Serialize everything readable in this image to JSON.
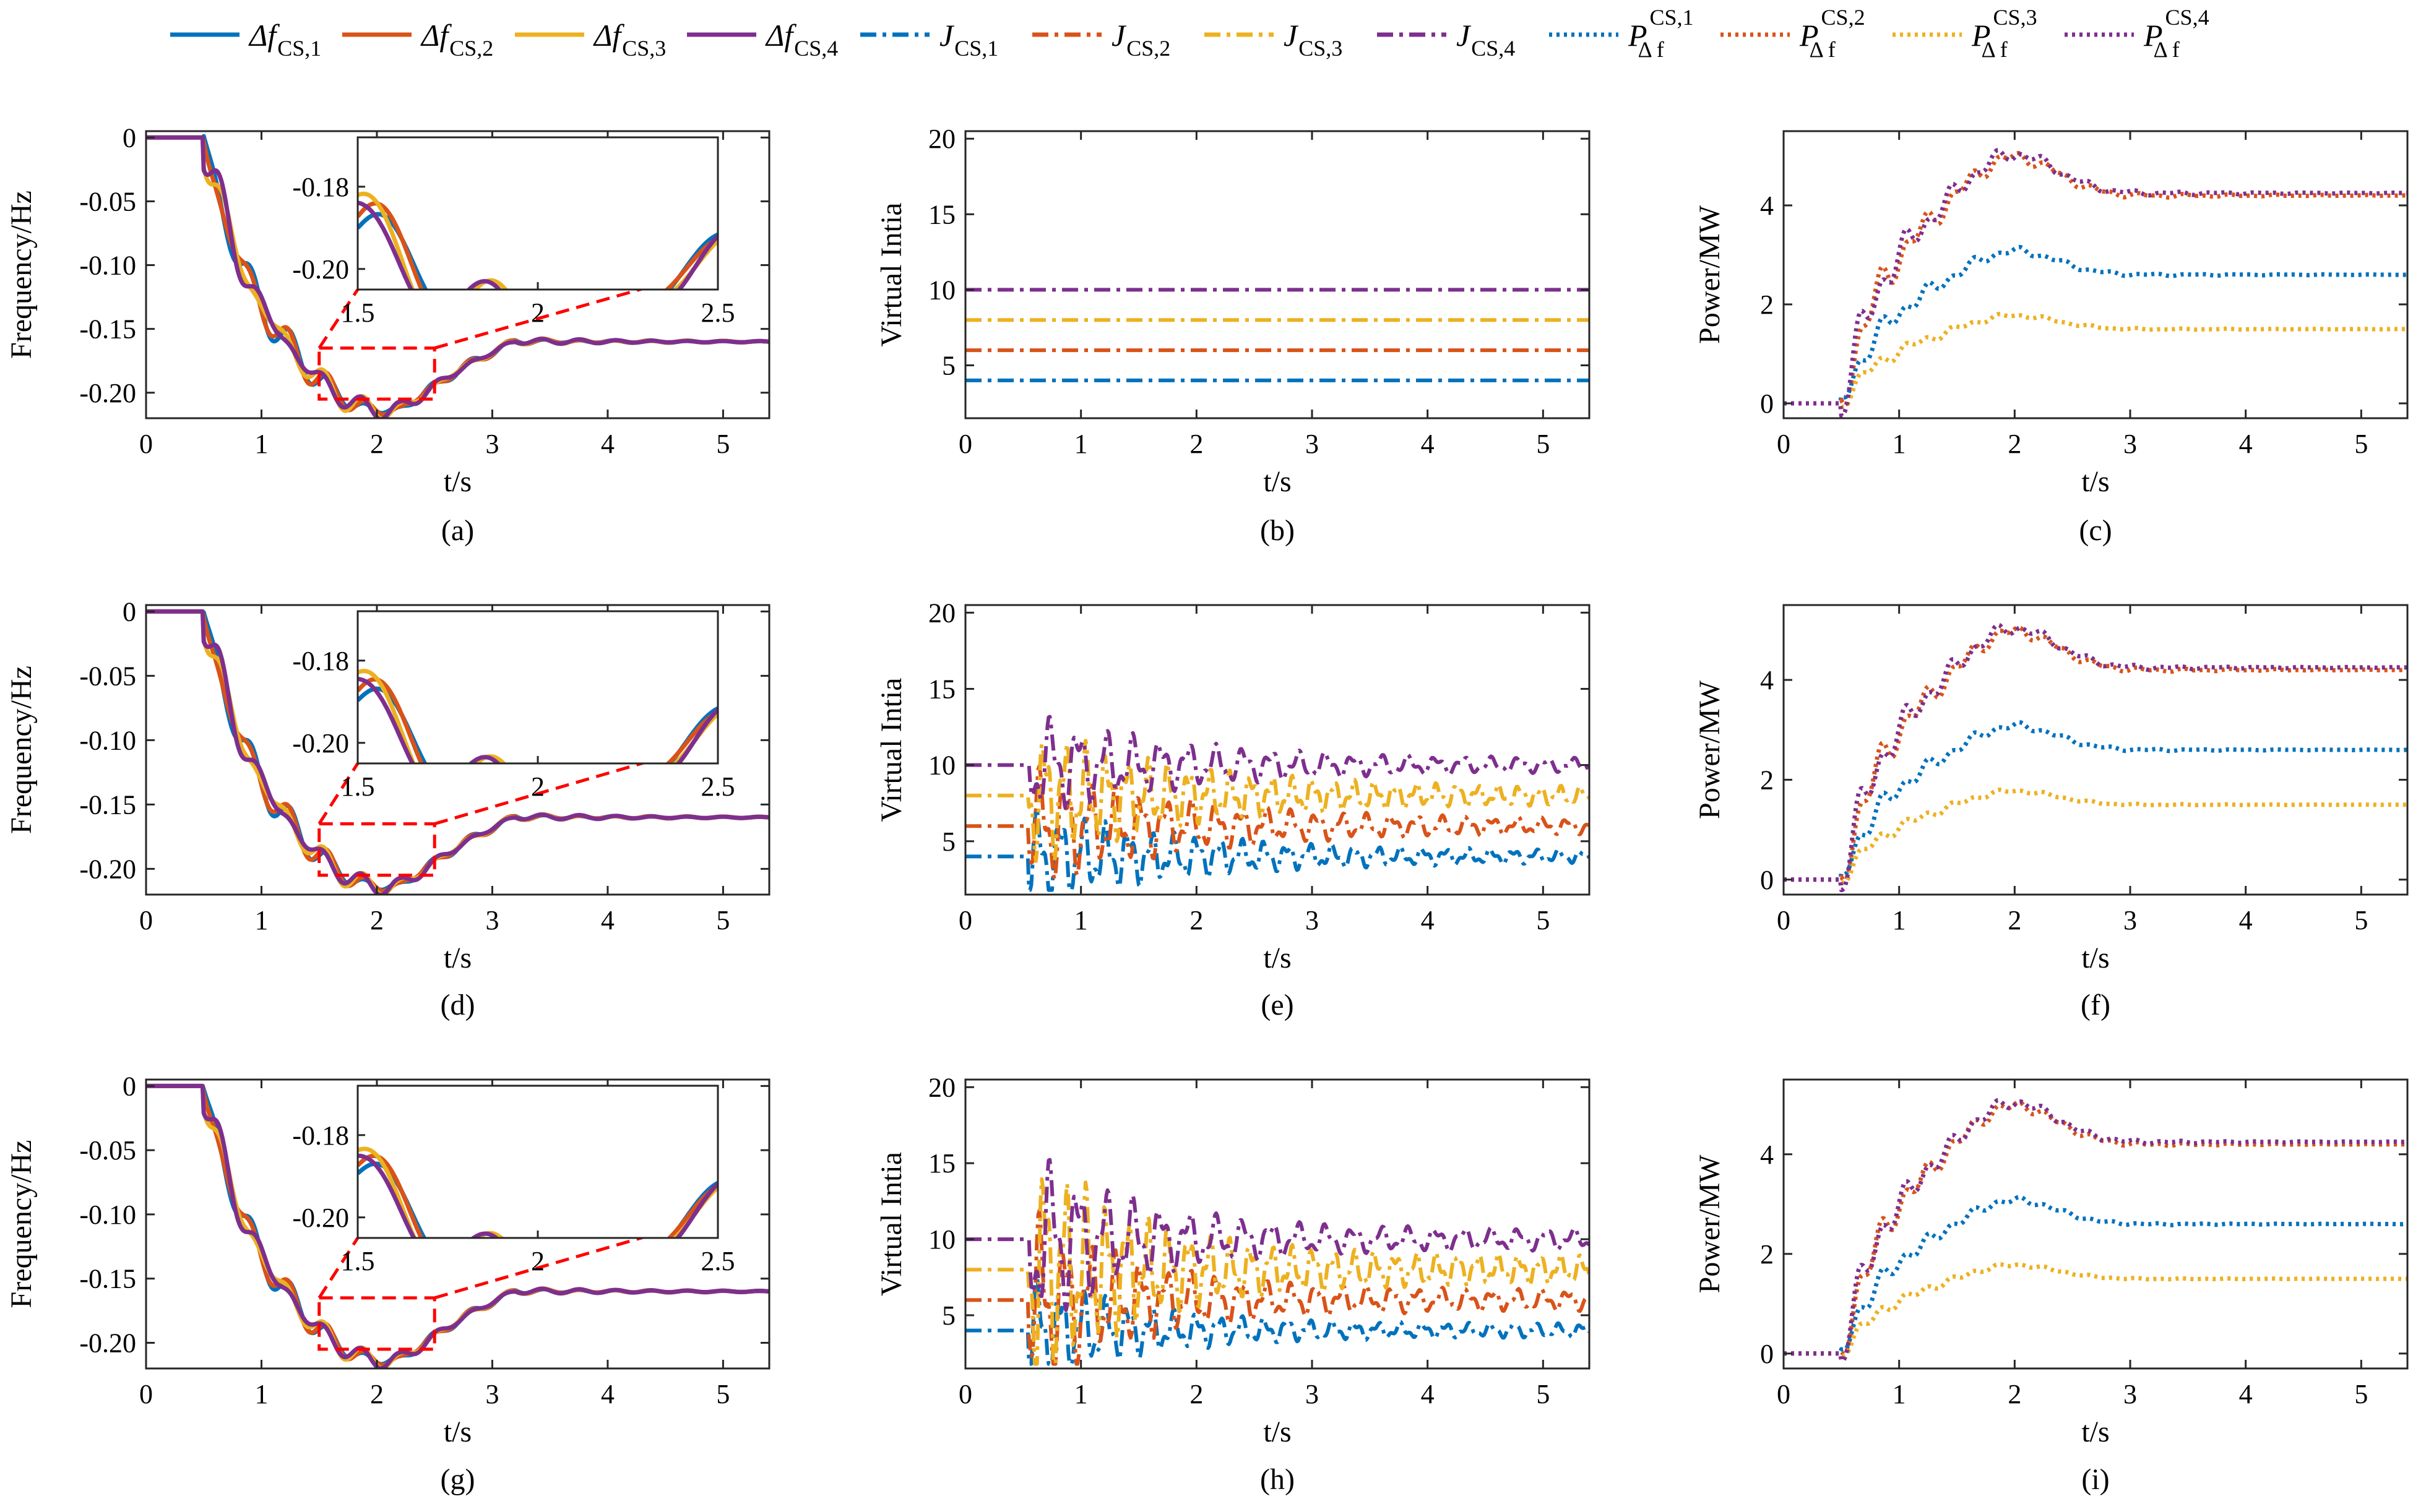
{
  "colors": {
    "cs1": "#0072BD",
    "cs2": "#D95319",
    "cs3": "#EDB120",
    "cs4": "#7E2F8E",
    "zoom": "#FF0000"
  },
  "legend": [
    {
      "symbol": "Δf",
      "sub": "CS,1",
      "style": "solid",
      "color": "cs1"
    },
    {
      "symbol": "Δf",
      "sub": "CS,2",
      "style": "solid",
      "color": "cs2"
    },
    {
      "symbol": "Δf",
      "sub": "CS,3",
      "style": "solid",
      "color": "cs3"
    },
    {
      "symbol": "Δf",
      "sub": "CS,4",
      "style": "solid",
      "color": "cs4"
    },
    {
      "symbol": "J",
      "sub": "CS,1",
      "style": "dashdot",
      "color": "cs1"
    },
    {
      "symbol": "J",
      "sub": "CS,2",
      "style": "dashdot",
      "color": "cs2"
    },
    {
      "symbol": "J",
      "sub": "CS,3",
      "style": "dashdot",
      "color": "cs3"
    },
    {
      "symbol": "J",
      "sub": "CS,4",
      "style": "dashdot",
      "color": "cs4"
    },
    {
      "symbol": "P",
      "sub": "Δ f",
      "sup": "CS,1",
      "style": "dotted",
      "color": "cs1"
    },
    {
      "symbol": "P",
      "sub": "Δ f",
      "sup": "CS,2",
      "style": "dotted",
      "color": "cs2"
    },
    {
      "symbol": "P",
      "sub": "Δ f",
      "sup": "CS,3",
      "style": "dotted",
      "color": "cs3"
    },
    {
      "symbol": "P",
      "sub": "Δ f",
      "sup": "CS,4",
      "style": "dotted",
      "color": "cs4"
    }
  ],
  "chart_data": [
    {
      "id": "a",
      "caption": "(a)",
      "type": "line",
      "kind": "freq",
      "variant": 0,
      "xlabel": "t/s",
      "ylabel": "Frequency/Hz",
      "xlim": [
        0,
        5.4
      ],
      "ylim": [
        -0.22,
        0.005
      ],
      "xticks": [
        0,
        1,
        2,
        3,
        4,
        5
      ],
      "yticks": [
        0,
        -0.05,
        -0.1,
        -0.15,
        -0.2
      ],
      "yticklabels": [
        "0",
        "-0.05",
        "-0.10",
        "-0.15",
        "-0.20"
      ],
      "series": [
        "Δf CS,1",
        "Δf CS,2",
        "Δf CS,3",
        "Δf CS,4"
      ],
      "inset": {
        "xlim": [
          1.5,
          2.5
        ],
        "ylim": [
          -0.205,
          -0.168
        ],
        "xticks": [
          1.5,
          2,
          2.5
        ],
        "xticklabels": [
          "1.5",
          "2",
          "2.5"
        ],
        "yticks": [
          -0.18,
          -0.2
        ],
        "yticklabels": [
          "-0.18",
          "-0.20"
        ],
        "zoom_box": {
          "x": [
            1.5,
            2.5
          ],
          "y": [
            -0.205,
            -0.165
          ]
        }
      }
    },
    {
      "id": "b",
      "caption": "(b)",
      "type": "line",
      "kind": "inertia",
      "variant": 0,
      "xlabel": "t/s",
      "ylabel": "Virtual Intia",
      "xlim": [
        0,
        5.4
      ],
      "ylim": [
        1.5,
        20.5
      ],
      "xticks": [
        0,
        1,
        2,
        3,
        4,
        5
      ],
      "yticks": [
        5,
        10,
        15,
        20
      ],
      "yticklabels": [
        "5",
        "10",
        "15",
        "20"
      ],
      "series": [
        "J CS,1",
        "J CS,2",
        "J CS,3",
        "J CS,4"
      ],
      "baseline": [
        4,
        6,
        8,
        10
      ]
    },
    {
      "id": "c",
      "caption": "(c)",
      "type": "line",
      "kind": "power",
      "variant": 0,
      "xlabel": "t/s",
      "ylabel": "Power/MW",
      "xlim": [
        0,
        5.4
      ],
      "ylim": [
        -0.3,
        5.5
      ],
      "xticks": [
        0,
        1,
        2,
        3,
        4,
        5
      ],
      "yticks": [
        0,
        2,
        4
      ],
      "yticklabels": [
        "0",
        "2",
        "4"
      ],
      "series": [
        "P CS,1",
        "P CS,2",
        "P CS,3",
        "P CS,4"
      ],
      "steady": [
        2.6,
        4.2,
        1.5,
        4.25
      ]
    },
    {
      "id": "d",
      "caption": "(d)",
      "type": "line",
      "kind": "freq",
      "variant": 1,
      "xlabel": "t/s",
      "ylabel": "Frequency/Hz",
      "xlim": [
        0,
        5.4
      ],
      "ylim": [
        -0.22,
        0.005
      ],
      "xticks": [
        0,
        1,
        2,
        3,
        4,
        5
      ],
      "yticks": [
        0,
        -0.05,
        -0.1,
        -0.15,
        -0.2
      ],
      "yticklabels": [
        "0",
        "-0.05",
        "-0.10",
        "-0.15",
        "-0.20"
      ],
      "series": [
        "Δf CS,1",
        "Δf CS,2",
        "Δf CS,3",
        "Δf CS,4"
      ],
      "inset": {
        "xlim": [
          1.5,
          2.5
        ],
        "ylim": [
          -0.205,
          -0.168
        ],
        "xticks": [
          1.5,
          2,
          2.5
        ],
        "xticklabels": [
          "1.5",
          "2",
          "2.5"
        ],
        "yticks": [
          -0.18,
          -0.2
        ],
        "yticklabels": [
          "-0.18",
          "-0.20"
        ],
        "zoom_box": {
          "x": [
            1.5,
            2.5
          ],
          "y": [
            -0.205,
            -0.165
          ]
        }
      }
    },
    {
      "id": "e",
      "caption": "(e)",
      "type": "line",
      "kind": "inertia",
      "variant": 1,
      "xlabel": "t/s",
      "ylabel": "Virtual Intia",
      "xlim": [
        0,
        5.4
      ],
      "ylim": [
        1.5,
        20.5
      ],
      "xticks": [
        0,
        1,
        2,
        3,
        4,
        5
      ],
      "yticks": [
        5,
        10,
        15,
        20
      ],
      "yticklabels": [
        "5",
        "10",
        "15",
        "20"
      ],
      "series": [
        "J CS,1",
        "J CS,2",
        "J CS,3",
        "J CS,4"
      ],
      "baseline": [
        4,
        6,
        8,
        10
      ]
    },
    {
      "id": "f",
      "caption": "(f)",
      "type": "line",
      "kind": "power",
      "variant": 1,
      "xlabel": "t/s",
      "ylabel": "Power/MW",
      "xlim": [
        0,
        5.4
      ],
      "ylim": [
        -0.3,
        5.5
      ],
      "xticks": [
        0,
        1,
        2,
        3,
        4,
        5
      ],
      "yticks": [
        0,
        2,
        4
      ],
      "yticklabels": [
        "0",
        "2",
        "4"
      ],
      "series": [
        "P CS,1",
        "P CS,2",
        "P CS,3",
        "P CS,4"
      ],
      "steady": [
        2.6,
        4.2,
        1.5,
        4.25
      ]
    },
    {
      "id": "g",
      "caption": "(g)",
      "type": "line",
      "kind": "freq",
      "variant": 2,
      "xlabel": "t/s",
      "ylabel": "Frequency/Hz",
      "xlim": [
        0,
        5.4
      ],
      "ylim": [
        -0.22,
        0.005
      ],
      "xticks": [
        0,
        1,
        2,
        3,
        4,
        5
      ],
      "yticks": [
        0,
        -0.05,
        -0.1,
        -0.15,
        -0.2
      ],
      "yticklabels": [
        "0",
        "-0.05",
        "-0.10",
        "-0.15",
        "-0.20"
      ],
      "series": [
        "Δf CS,1",
        "Δf CS,2",
        "Δf CS,3",
        "Δf CS,4"
      ],
      "inset": {
        "xlim": [
          1.5,
          2.5
        ],
        "ylim": [
          -0.205,
          -0.168
        ],
        "xticks": [
          1.5,
          2,
          2.5
        ],
        "xticklabels": [
          "1.5",
          "2",
          "2.5"
        ],
        "yticks": [
          -0.18,
          -0.2
        ],
        "yticklabels": [
          "-0.18",
          "-0.20"
        ],
        "zoom_box": {
          "x": [
            1.5,
            2.5
          ],
          "y": [
            -0.205,
            -0.165
          ]
        }
      }
    },
    {
      "id": "h",
      "caption": "(h)",
      "type": "line",
      "kind": "inertia",
      "variant": 2,
      "xlabel": "t/s",
      "ylabel": "Virtual Intia",
      "xlim": [
        0,
        5.4
      ],
      "ylim": [
        1.5,
        20.5
      ],
      "xticks": [
        0,
        1,
        2,
        3,
        4,
        5
      ],
      "yticks": [
        5,
        10,
        15,
        20
      ],
      "yticklabels": [
        "5",
        "10",
        "15",
        "20"
      ],
      "series": [
        "J CS,1",
        "J CS,2",
        "J CS,3",
        "J CS,4"
      ],
      "baseline": [
        4,
        6,
        8,
        10
      ]
    },
    {
      "id": "i",
      "caption": "(i)",
      "type": "line",
      "kind": "power",
      "variant": 2,
      "xlabel": "t/s",
      "ylabel": "Power/MW",
      "xlim": [
        0,
        5.4
      ],
      "ylim": [
        -0.3,
        5.5
      ],
      "xticks": [
        0,
        1,
        2,
        3,
        4,
        5
      ],
      "yticks": [
        0,
        2,
        4
      ],
      "yticklabels": [
        "0",
        "2",
        "4"
      ],
      "series": [
        "P CS,1",
        "P CS,2",
        "P CS,3",
        "P CS,4"
      ],
      "steady": [
        2.6,
        4.2,
        1.5,
        4.25
      ]
    }
  ]
}
